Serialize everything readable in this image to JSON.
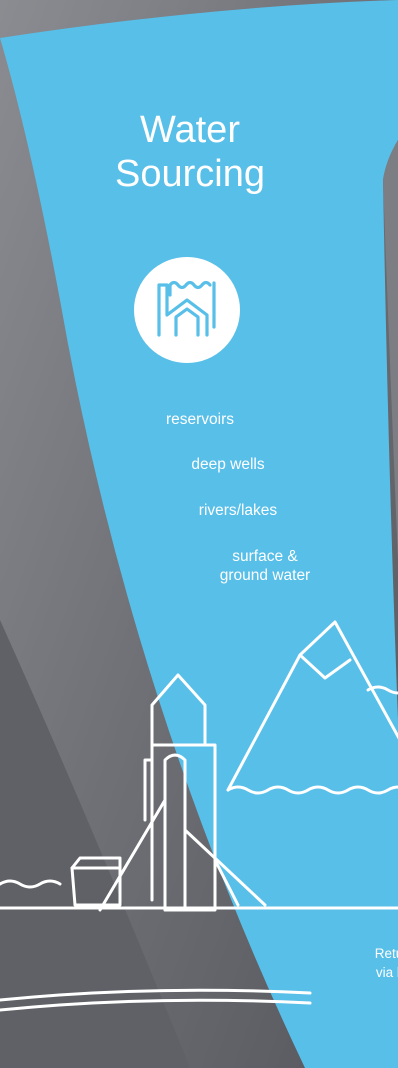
{
  "panel": {
    "title_line1": "Water",
    "title_line2": "Sourcing",
    "icon": "water-treatment-plant-icon",
    "sources": [
      "reservoirs",
      "deep wells",
      "rivers/lakes",
      "surface &\nground water"
    ],
    "return_note": "Return\nvia lak"
  },
  "colors": {
    "panel_blue": "#58bfe9",
    "background_gray": "#6f7177",
    "text": "#ffffff"
  }
}
